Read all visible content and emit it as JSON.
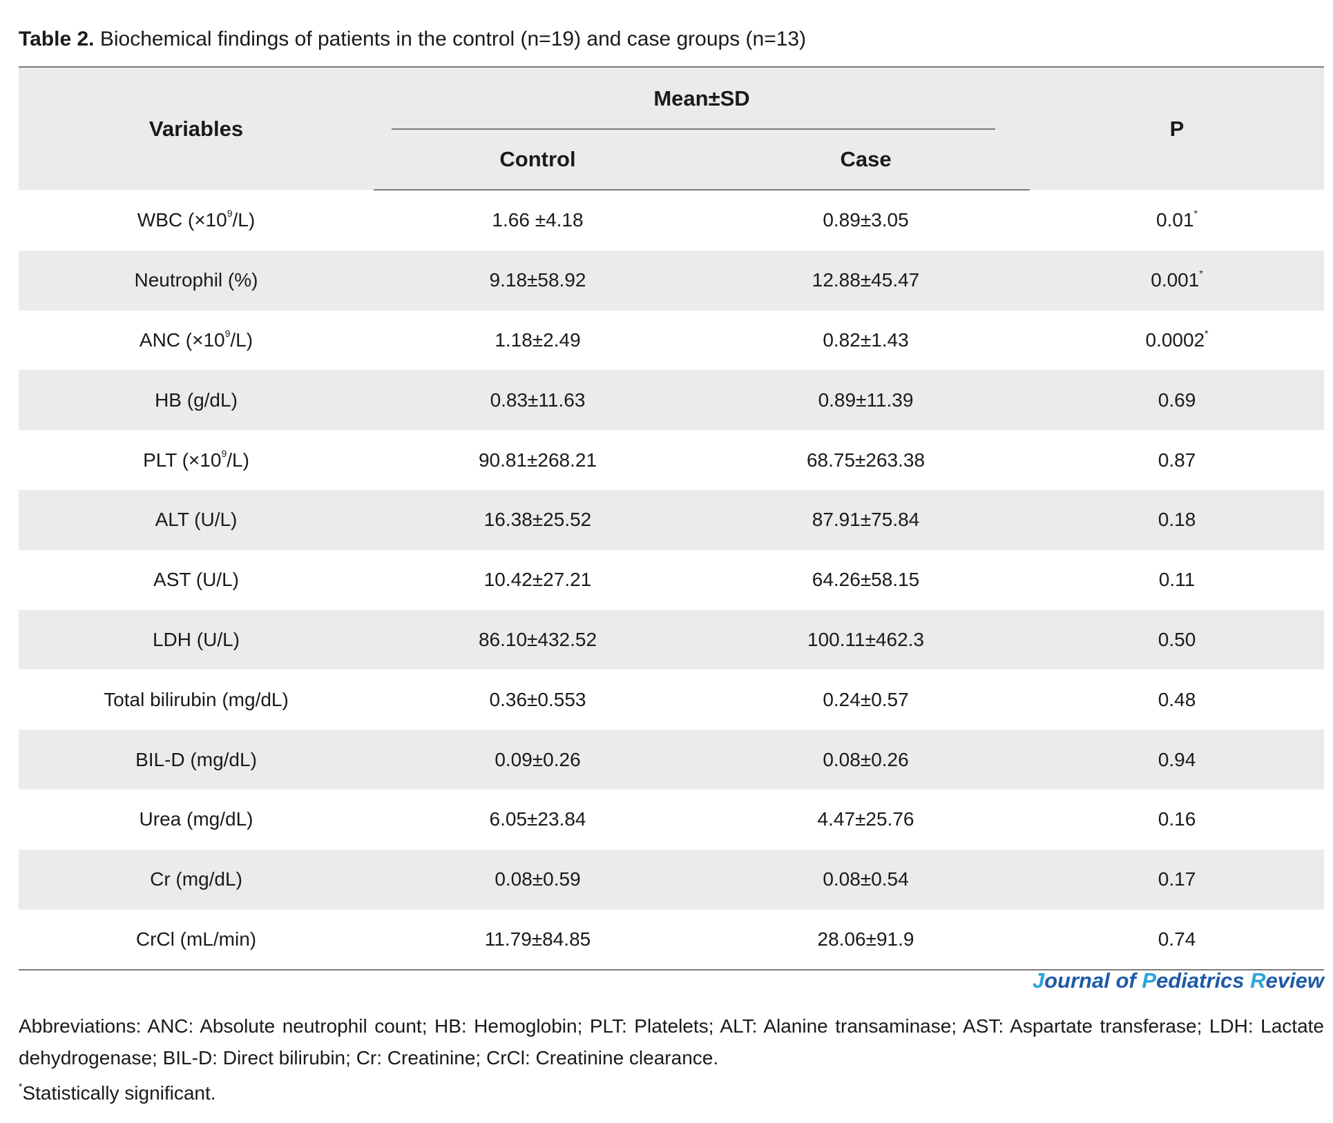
{
  "caption": {
    "label": "Table 2.",
    "text": "Biochemical findings of patients in the control (n=19) and case groups (n=13)"
  },
  "header": {
    "variables": "Variables",
    "group": "Mean±SD",
    "control": "Control",
    "case": "Case",
    "p": "P"
  },
  "rows": [
    {
      "variable_pre": "WBC (×10",
      "variable_sup": "9",
      "variable_post": "/L)",
      "control": "1.66 ±4.18",
      "case": "0.89±3.05",
      "p": "0.01",
      "p_mark": "*"
    },
    {
      "variable_pre": "Neutrophil (%)",
      "variable_sup": "",
      "variable_post": "",
      "control": "9.18±58.92",
      "case": "12.88±45.47",
      "p": "0.001",
      "p_mark": "*"
    },
    {
      "variable_pre": "ANC (×10",
      "variable_sup": "9",
      "variable_post": "/L)",
      "control": "1.18±2.49",
      "case": "0.82±1.43",
      "p": "0.0002",
      "p_mark": "*"
    },
    {
      "variable_pre": "HB (g/dL)",
      "variable_sup": "",
      "variable_post": "",
      "control": "0.83±11.63",
      "case": "0.89±11.39",
      "p": "0.69",
      "p_mark": ""
    },
    {
      "variable_pre": "PLT (×10",
      "variable_sup": "9",
      "variable_post": "/L)",
      "control": "90.81±268.21",
      "case": "68.75±263.38",
      "p": "0.87",
      "p_mark": ""
    },
    {
      "variable_pre": "ALT (U/L)",
      "variable_sup": "",
      "variable_post": "",
      "control": "16.38±25.52",
      "case": "87.91±75.84",
      "p": "0.18",
      "p_mark": ""
    },
    {
      "variable_pre": "AST (U/L)",
      "variable_sup": "",
      "variable_post": "",
      "control": "10.42±27.21",
      "case": "64.26±58.15",
      "p": "0.11",
      "p_mark": ""
    },
    {
      "variable_pre": "LDH (U/L)",
      "variable_sup": "",
      "variable_post": "",
      "control": "86.10±432.52",
      "case": "100.11±462.3",
      "p": "0.50",
      "p_mark": ""
    },
    {
      "variable_pre": "Total bilirubin (mg/dL)",
      "variable_sup": "",
      "variable_post": "",
      "control": "0.36±0.553",
      "case": "0.24±0.57",
      "p": "0.48",
      "p_mark": ""
    },
    {
      "variable_pre": "BIL-D (mg/dL)",
      "variable_sup": "",
      "variable_post": "",
      "control": "0.09±0.26",
      "case": "0.08±0.26",
      "p": "0.94",
      "p_mark": ""
    },
    {
      "variable_pre": "Urea (mg/dL)",
      "variable_sup": "",
      "variable_post": "",
      "control": "6.05±23.84",
      "case": "4.47±25.76",
      "p": "0.16",
      "p_mark": ""
    },
    {
      "variable_pre": "Cr (mg/dL)",
      "variable_sup": "",
      "variable_post": "",
      "control": "0.08±0.59",
      "case": "0.08±0.54",
      "p": "0.17",
      "p_mark": ""
    },
    {
      "variable_pre": "CrCl (mL/min)",
      "variable_sup": "",
      "variable_post": "",
      "control": "11.79±84.85",
      "case": "28.06±91.9",
      "p": "0.74",
      "p_mark": ""
    }
  ],
  "journal": {
    "j": "J",
    "ournal": "ournal of ",
    "p": "P",
    "ediatrics": "ediatrics ",
    "r": "R",
    "eview": "eview"
  },
  "abbreviations": "Abbreviations: ANC: Absolute neutrophil count; HB: Hemoglobin; PLT: Platelets; ALT: Alanine transaminase; AST: Aspartate transferase; LDH: Lactate dehydrogenase; BIL-D: Direct bilirubin; Cr: Creatinine; CrCl: Creatinine clearance.",
  "footnote": {
    "mark": "*",
    "text": "Statistically significant."
  },
  "colors": {
    "header_bg": "#ebebeb",
    "rule": "#7a7a7a",
    "journal_dark": "#1e5aa8",
    "journal_accent": "#2aa4dc"
  }
}
